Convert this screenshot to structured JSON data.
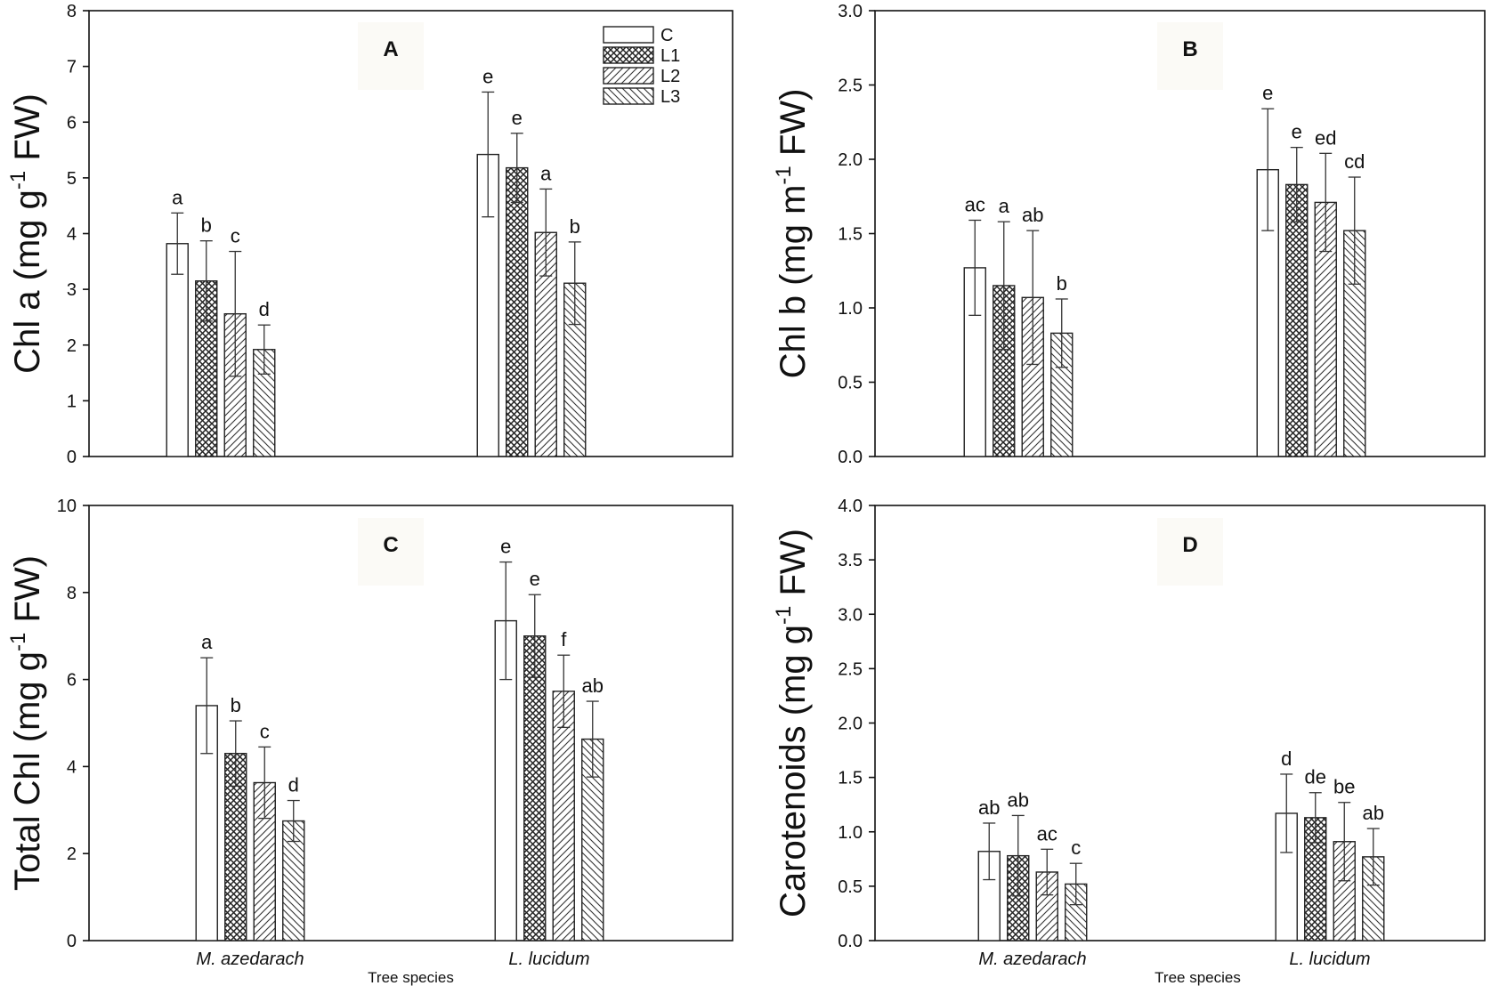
{
  "figure": {
    "x_axis_title": "Tree species",
    "groups": [
      "M. azedarach",
      "L. lucidum"
    ],
    "legend": [
      {
        "key": "C",
        "label": "C",
        "pattern": "none"
      },
      {
        "key": "L1",
        "label": "L1",
        "pattern": "cross"
      },
      {
        "key": "L2",
        "label": "L2",
        "pattern": "diag-right"
      },
      {
        "key": "L3",
        "label": "L3",
        "pattern": "diag-left"
      }
    ]
  },
  "chart_data": [
    {
      "panel": "A",
      "type": "bar",
      "ylabel": "Chl a (mg g-1 FW)",
      "ylabel_main": "Chl a (mg g",
      "ylabel_sup": "-1",
      "ylabel_tail": " FW)",
      "ylim": [
        0,
        8
      ],
      "yticks": [
        0,
        1,
        2,
        3,
        4,
        5,
        6,
        7,
        8
      ],
      "categories": [
        "M. azedarach",
        "L. lucidum"
      ],
      "series": [
        {
          "name": "C",
          "values": [
            3.82,
            5.42
          ],
          "errors": [
            0.55,
            1.12
          ],
          "letters": [
            "a",
            "e"
          ]
        },
        {
          "name": "L1",
          "values": [
            3.15,
            5.18
          ],
          "errors": [
            0.72,
            0.62
          ],
          "letters": [
            "b",
            "e"
          ]
        },
        {
          "name": "L2",
          "values": [
            2.56,
            4.02
          ],
          "errors": [
            1.12,
            0.78
          ],
          "letters": [
            "c",
            "a"
          ]
        },
        {
          "name": "L3",
          "values": [
            1.92,
            3.11
          ],
          "errors": [
            0.44,
            0.74
          ],
          "letters": [
            "d",
            "b"
          ]
        }
      ],
      "show_x_labels": false,
      "show_legend": true
    },
    {
      "panel": "B",
      "type": "bar",
      "ylabel": "Chl b (mg m-1 FW)",
      "ylabel_main": "Chl b (mg m",
      "ylabel_sup": "-1",
      "ylabel_tail": " FW)",
      "ylim": [
        0,
        3.0
      ],
      "yticks": [
        "0.0",
        "0.5",
        "1.0",
        "1.5",
        "2.0",
        "2.5",
        "3.0"
      ],
      "categories": [
        "M. azedarach",
        "L. lucidum"
      ],
      "series": [
        {
          "name": "C",
          "values": [
            1.27,
            1.93
          ],
          "errors": [
            0.32,
            0.41
          ],
          "letters": [
            "ac",
            "e"
          ]
        },
        {
          "name": "L1",
          "values": [
            1.15,
            1.83
          ],
          "errors": [
            0.43,
            0.25
          ],
          "letters": [
            "a",
            "e"
          ]
        },
        {
          "name": "L2",
          "values": [
            1.07,
            1.71
          ],
          "errors": [
            0.45,
            0.33
          ],
          "letters": [
            "ab",
            "ed"
          ]
        },
        {
          "name": "L3",
          "values": [
            0.83,
            1.52
          ],
          "errors": [
            0.23,
            0.36
          ],
          "letters": [
            "b",
            "cd"
          ]
        }
      ],
      "show_x_labels": false,
      "show_legend": false
    },
    {
      "panel": "C",
      "type": "bar",
      "ylabel": "Total Chl (mg g-1 FW)",
      "ylabel_main": "Total Chl (mg g",
      "ylabel_sup": "-1",
      "ylabel_tail": " FW)",
      "ylim": [
        0,
        10
      ],
      "yticks": [
        0,
        2,
        4,
        6,
        8,
        10
      ],
      "categories": [
        "M. azedarach",
        "L. lucidum"
      ],
      "series": [
        {
          "name": "C",
          "values": [
            5.4,
            7.35
          ],
          "errors": [
            1.1,
            1.35
          ],
          "letters": [
            "a",
            "e"
          ]
        },
        {
          "name": "L1",
          "values": [
            4.3,
            7.0
          ],
          "errors": [
            0.75,
            0.95
          ],
          "letters": [
            "b",
            "e"
          ]
        },
        {
          "name": "L2",
          "values": [
            3.63,
            5.73
          ],
          "errors": [
            0.82,
            0.83
          ],
          "letters": [
            "c",
            "f"
          ]
        },
        {
          "name": "L3",
          "values": [
            2.75,
            4.63
          ],
          "errors": [
            0.47,
            0.87
          ],
          "letters": [
            "d",
            "ab"
          ]
        }
      ],
      "show_x_labels": true,
      "show_legend": false
    },
    {
      "panel": "D",
      "type": "bar",
      "ylabel": "Carotenoids (mg g-1 FW)",
      "ylabel_main": "Carotenoids (mg g",
      "ylabel_sup": "-1",
      "ylabel_tail": " FW)",
      "ylim": [
        0,
        4.0
      ],
      "yticks": [
        "0.0",
        "0.5",
        "1.0",
        "1.5",
        "2.0",
        "2.5",
        "3.0",
        "3.5",
        "4.0"
      ],
      "categories": [
        "M. azedarach",
        "L. lucidum"
      ],
      "series": [
        {
          "name": "C",
          "values": [
            0.82,
            1.17
          ],
          "errors": [
            0.26,
            0.36
          ],
          "letters": [
            "ab",
            "d"
          ]
        },
        {
          "name": "L1",
          "values": [
            0.78,
            1.13
          ],
          "errors": [
            0.37,
            0.23
          ],
          "letters": [
            "ab",
            "de"
          ]
        },
        {
          "name": "L2",
          "values": [
            0.63,
            0.91
          ],
          "errors": [
            0.21,
            0.36
          ],
          "letters": [
            "ac",
            "be"
          ]
        },
        {
          "name": "L3",
          "values": [
            0.52,
            0.77
          ],
          "errors": [
            0.19,
            0.26
          ],
          "letters": [
            "c",
            "ab"
          ]
        }
      ],
      "show_x_labels": true,
      "show_legend": false
    }
  ]
}
